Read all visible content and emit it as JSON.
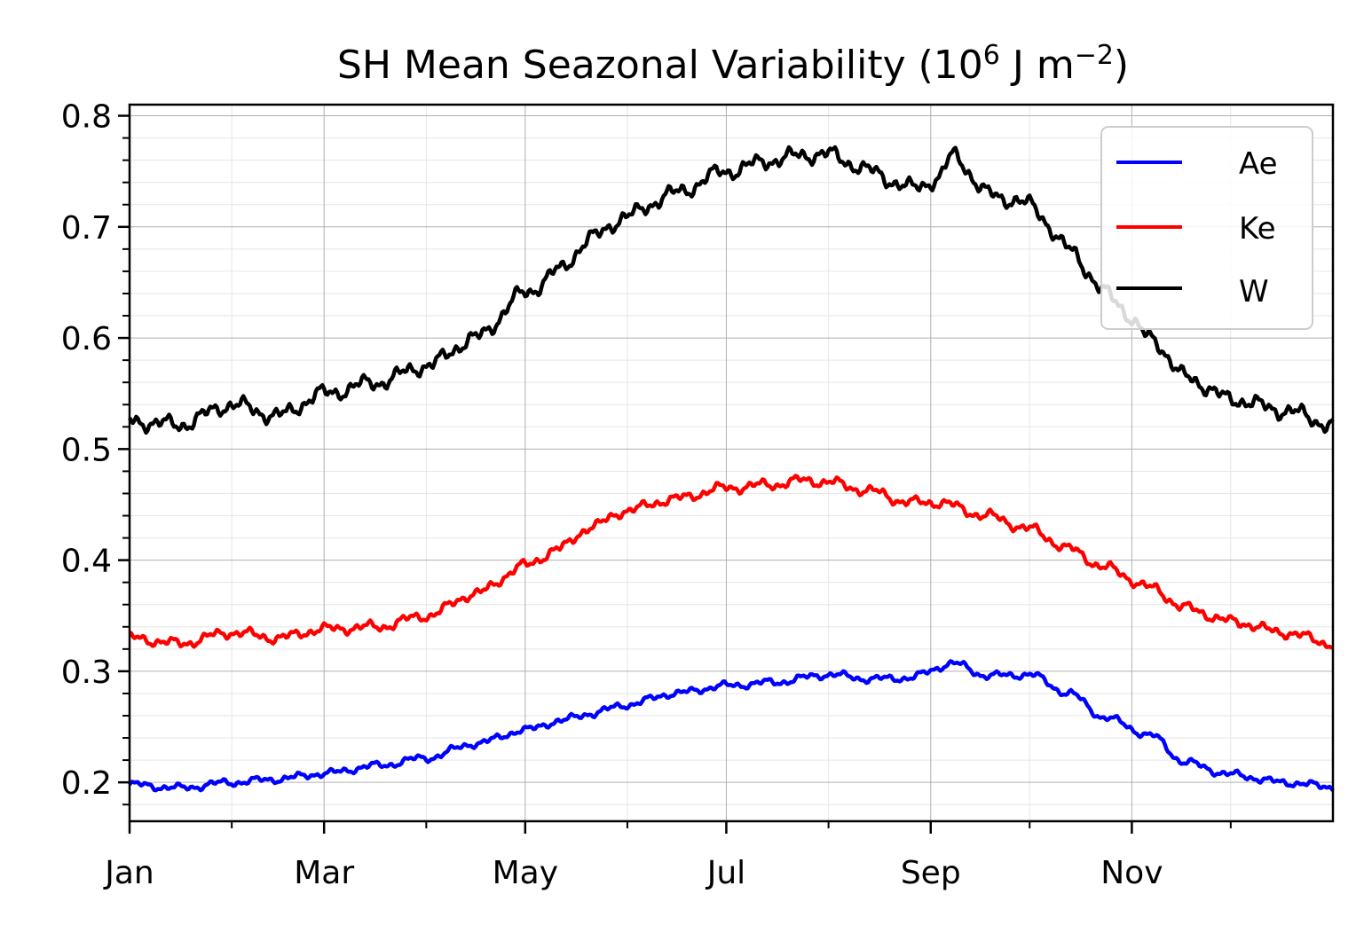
{
  "chart_data": {
    "type": "line",
    "title": "SH Mean Seazonal Variability (10",
    "title_exp": "6",
    "title_unit": " J m",
    "title_unit_exp": "−2",
    "title_close": ")",
    "xlabel": "",
    "ylabel": "",
    "x_ticks": [
      "Jan",
      "Mar",
      "May",
      "Jul",
      "Sep",
      "Nov"
    ],
    "x_tick_days": [
      0,
      59,
      120,
      181,
      243,
      304
    ],
    "x_minor_days": [
      31,
      90,
      151,
      212,
      273,
      334
    ],
    "xlim_days": [
      0,
      365
    ],
    "y_ticks": [
      0.2,
      0.3,
      0.4,
      0.5,
      0.6,
      0.7,
      0.8
    ],
    "y_tick_labels": [
      "0.2",
      "0.3",
      "0.4",
      "0.5",
      "0.6",
      "0.7",
      "0.8"
    ],
    "ylim": [
      0.165,
      0.81
    ],
    "grid": true,
    "legend_position": "top-right",
    "series": [
      {
        "name": "Ae",
        "color": "#0000ff",
        "x_days": [
          0,
          15,
          31,
          45,
          59,
          75,
          90,
          105,
          120,
          130,
          140,
          151,
          165,
          181,
          195,
          212,
          225,
          236,
          250,
          260,
          273,
          285,
          296,
          310,
          320,
          334,
          350,
          365
        ],
        "values": [
          0.198,
          0.195,
          0.2,
          0.203,
          0.208,
          0.215,
          0.222,
          0.235,
          0.247,
          0.255,
          0.262,
          0.27,
          0.28,
          0.287,
          0.29,
          0.297,
          0.293,
          0.294,
          0.307,
          0.296,
          0.297,
          0.28,
          0.258,
          0.242,
          0.218,
          0.207,
          0.2,
          0.196
        ]
      },
      {
        "name": "Ke",
        "color": "#ff0000",
        "x_days": [
          0,
          15,
          31,
          45,
          59,
          75,
          90,
          105,
          120,
          130,
          140,
          151,
          165,
          181,
          195,
          205,
          212,
          225,
          236,
          245,
          260,
          273,
          285,
          296,
          310,
          320,
          334,
          350,
          365
        ],
        "values": [
          0.33,
          0.325,
          0.335,
          0.33,
          0.338,
          0.34,
          0.35,
          0.37,
          0.395,
          0.41,
          0.43,
          0.445,
          0.455,
          0.465,
          0.468,
          0.472,
          0.47,
          0.462,
          0.452,
          0.452,
          0.44,
          0.428,
          0.41,
          0.393,
          0.375,
          0.357,
          0.345,
          0.335,
          0.325
        ]
      },
      {
        "name": "W",
        "color": "#000000",
        "x_days": [
          0,
          15,
          31,
          45,
          59,
          75,
          90,
          105,
          120,
          130,
          140,
          151,
          165,
          181,
          195,
          205,
          212,
          225,
          236,
          245,
          250,
          260,
          273,
          285,
          296,
          310,
          320,
          334,
          350,
          365
        ],
        "values": [
          0.525,
          0.522,
          0.54,
          0.53,
          0.55,
          0.56,
          0.575,
          0.6,
          0.64,
          0.66,
          0.69,
          0.71,
          0.73,
          0.75,
          0.76,
          0.765,
          0.765,
          0.75,
          0.735,
          0.742,
          0.765,
          0.73,
          0.72,
          0.68,
          0.64,
          0.6,
          0.565,
          0.545,
          0.535,
          0.522
        ]
      }
    ]
  }
}
